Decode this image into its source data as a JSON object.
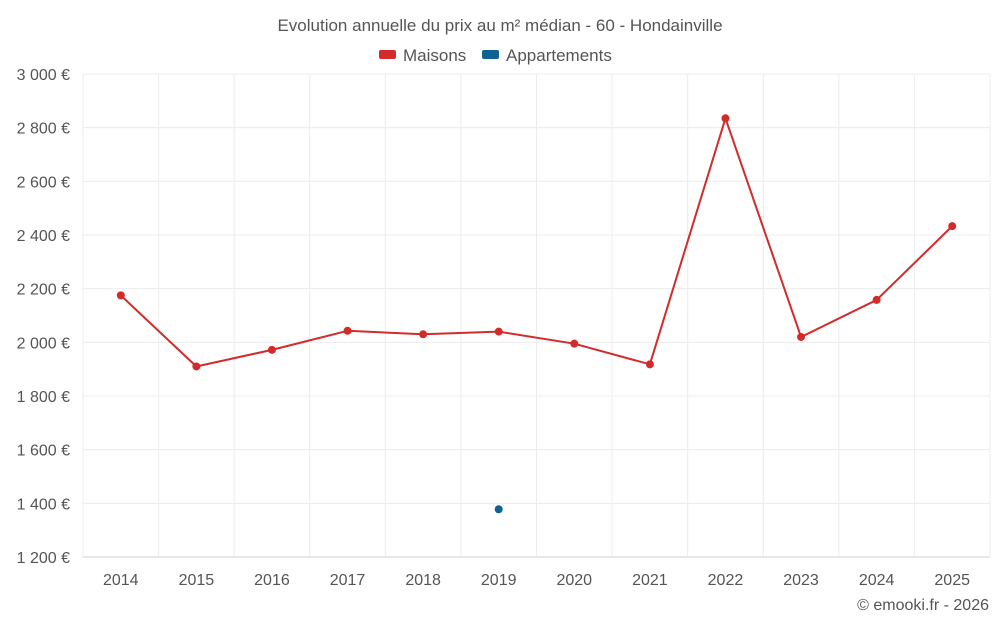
{
  "chart_data": {
    "type": "line",
    "title": "Evolution annuelle du prix au m² médian - 60 - Hondainville",
    "categories": [
      "2014",
      "2015",
      "2016",
      "2017",
      "2018",
      "2019",
      "2020",
      "2021",
      "2022",
      "2023",
      "2024",
      "2025"
    ],
    "series": [
      {
        "name": "Maisons",
        "color": "#d32a2a",
        "values": [
          2175,
          1910,
          1972,
          2043,
          2030,
          2040,
          1995,
          1918,
          2835,
          2020,
          2158,
          2433
        ]
      },
      {
        "name": "Appartements",
        "color": "#0e6296",
        "values": [
          null,
          null,
          null,
          null,
          null,
          1378,
          null,
          null,
          null,
          null,
          null,
          null
        ]
      }
    ],
    "ylim": [
      1200,
      3000
    ],
    "y_ticks": [
      1200,
      1400,
      1600,
      1800,
      2000,
      2200,
      2400,
      2600,
      2800,
      3000
    ],
    "y_tick_labels": [
      "1 200 €",
      "1 400 €",
      "1 600 €",
      "1 800 €",
      "2 000 €",
      "2 200 €",
      "2 400 €",
      "2 600 €",
      "2 800 €",
      "3 000 €"
    ],
    "xlabel": "",
    "ylabel": "",
    "grid": true,
    "legend": "top-center"
  },
  "credit": "© emooki.fr - 2026"
}
